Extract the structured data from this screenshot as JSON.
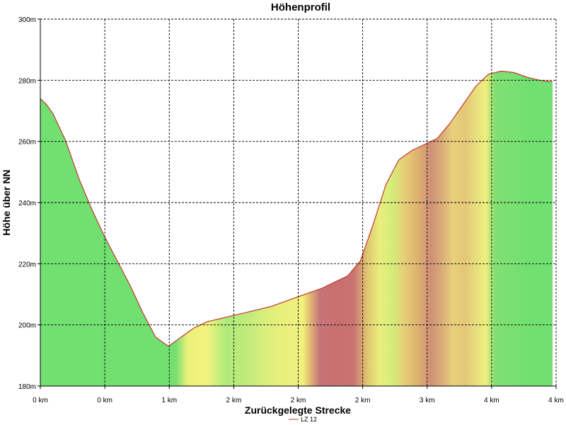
{
  "chart_data": {
    "type": "area",
    "title": "Höhenprofil",
    "xlabel": "Zurückgelegte Strecke",
    "ylabel": "Höhe über NN",
    "ylim": [
      180,
      300
    ],
    "xlim": [
      0,
      4
    ],
    "yticks": [
      "180m",
      "200m",
      "220m",
      "240m",
      "260m",
      "280m",
      "300m"
    ],
    "xticks": [
      "0 km",
      "0 km",
      "1 km",
      "2 km",
      "2 km",
      "2 km",
      "3 km",
      "4 km",
      "4 km"
    ],
    "grid": true,
    "legend_position": "bottom-center",
    "series": [
      {
        "name": "LZ 12",
        "line_color": "#c0392b",
        "x": [
          0,
          0.05,
          0.1,
          0.2,
          0.3,
          0.4,
          0.5,
          0.6,
          0.7,
          0.8,
          0.9,
          1.0,
          1.1,
          1.2,
          1.3,
          1.35,
          1.4,
          1.5,
          1.6,
          1.7,
          1.8,
          1.9,
          2.0,
          2.1,
          2.2,
          2.3,
          2.4,
          2.5,
          2.6,
          2.7,
          2.8,
          2.9,
          3.0,
          3.1,
          3.2,
          3.3,
          3.4,
          3.5,
          3.6,
          3.7,
          3.8,
          3.85,
          3.9,
          3.95,
          4.0
        ],
        "y": [
          274,
          272,
          269,
          260,
          248,
          238,
          229,
          221,
          213,
          204,
          196,
          193,
          196,
          199,
          201,
          201.5,
          202,
          203,
          204,
          205,
          206,
          207.5,
          209,
          210.5,
          212,
          214,
          216,
          221,
          233,
          246,
          254,
          257,
          259,
          261,
          266,
          272,
          278,
          282,
          283,
          282.5,
          281,
          280.5,
          280,
          279.7,
          279.5
        ]
      }
    ],
    "gradient_stops": [
      {
        "x": 0.0,
        "color": "#71e071"
      },
      {
        "x": 1.0,
        "color": "#71e071"
      },
      {
        "x": 1.06,
        "color": "#7ade70"
      },
      {
        "x": 1.15,
        "color": "#eaf07a"
      },
      {
        "x": 1.3,
        "color": "#f2f47f"
      },
      {
        "x": 1.45,
        "color": "#aee97a"
      },
      {
        "x": 1.62,
        "color": "#c0eb7b"
      },
      {
        "x": 1.75,
        "color": "#d8ee7b"
      },
      {
        "x": 1.9,
        "color": "#eaf07c"
      },
      {
        "x": 2.0,
        "color": "#eef07f"
      },
      {
        "x": 2.05,
        "color": "#f2f27e"
      },
      {
        "x": 2.1,
        "color": "#e3bf74"
      },
      {
        "x": 2.18,
        "color": "#c6757b"
      },
      {
        "x": 2.3,
        "color": "#c96f6f"
      },
      {
        "x": 2.45,
        "color": "#ca7373"
      },
      {
        "x": 2.55,
        "color": "#dfc471"
      },
      {
        "x": 2.65,
        "color": "#eaef7c"
      },
      {
        "x": 2.75,
        "color": "#d4ec7a"
      },
      {
        "x": 2.83,
        "color": "#e6d278"
      },
      {
        "x": 2.95,
        "color": "#ddb070"
      },
      {
        "x": 3.05,
        "color": "#cf9078"
      },
      {
        "x": 3.15,
        "color": "#dcb278"
      },
      {
        "x": 3.22,
        "color": "#e8d07b"
      },
      {
        "x": 3.32,
        "color": "#e3c777"
      },
      {
        "x": 3.4,
        "color": "#e8de7f"
      },
      {
        "x": 3.48,
        "color": "#f0ef7e"
      },
      {
        "x": 3.55,
        "color": "#82df72"
      },
      {
        "x": 3.8,
        "color": "#71e071"
      },
      {
        "x": 4.0,
        "color": "#71e071"
      }
    ]
  }
}
